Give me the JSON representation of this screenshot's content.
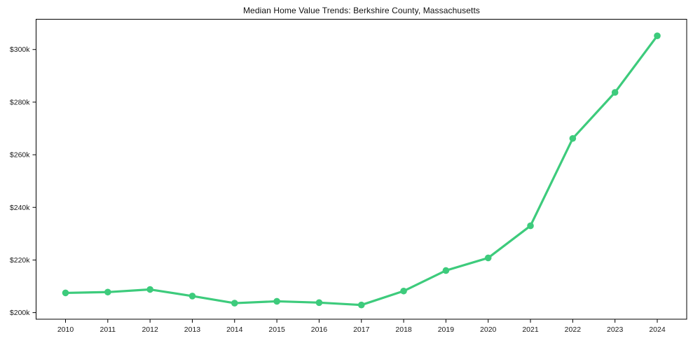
{
  "chart_data": {
    "type": "line",
    "title": "Median Home Value Trends: Berkshire County, Massachusetts",
    "series_name": "Median Home Value",
    "categories": [
      "2010",
      "2011",
      "2012",
      "2013",
      "2014",
      "2015",
      "2016",
      "2017",
      "2018",
      "2019",
      "2020",
      "2021",
      "2022",
      "2023",
      "2024"
    ],
    "values": [
      207500,
      207800,
      208800,
      206300,
      203600,
      204300,
      203800,
      202900,
      208200,
      216000,
      220800,
      233000,
      266200,
      283700,
      305200
    ],
    "xlabel": "",
    "ylabel": "",
    "ylim": [
      197500,
      311500
    ],
    "y_ticks": [
      {
        "value": 200000,
        "label": "$200k"
      },
      {
        "value": 220000,
        "label": "$220k"
      },
      {
        "value": 240000,
        "label": "$240k"
      },
      {
        "value": 260000,
        "label": "$260k"
      },
      {
        "value": 280000,
        "label": "$280k"
      },
      {
        "value": 300000,
        "label": "$300k"
      }
    ],
    "grid": false,
    "legend_position": "none",
    "line_color": "#3dcb7c",
    "marker_color": "#3dcb7c",
    "axis_color": "#000000",
    "tick_text_color": "#1a1a1a",
    "background_color": "#ffffff"
  }
}
